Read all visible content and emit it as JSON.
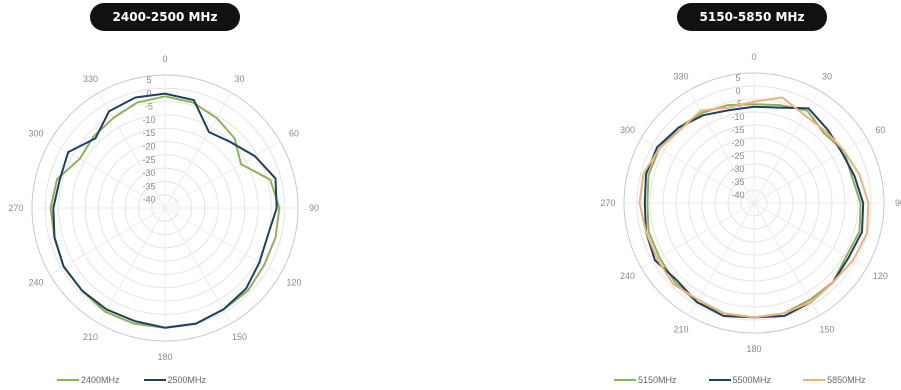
{
  "chart_data": [
    {
      "type": "polar-line",
      "title": "2400-2500 MHz",
      "angle_ticks": [
        "0",
        "30",
        "60",
        "90",
        "120",
        "150",
        "180",
        "210",
        "240",
        "270",
        "300",
        "330"
      ],
      "radial_ticks": [
        "5",
        "0",
        "-5",
        "-10",
        "-15",
        "-20",
        "-25",
        "-30",
        "-35",
        "-40"
      ],
      "rlim": [
        -45,
        5
      ],
      "angles": [
        0,
        15,
        30,
        45,
        60,
        75,
        90,
        105,
        120,
        135,
        150,
        165,
        180,
        195,
        210,
        225,
        240,
        255,
        270,
        285,
        300,
        315,
        330,
        345
      ],
      "legend_position": "bottom",
      "series": [
        {
          "name": "2400MHz",
          "color": "#8db356",
          "values": [
            -3,
            -4,
            -6,
            -8,
            -12,
            -4,
            -2,
            -2,
            -2,
            -1,
            -1,
            0,
            0,
            0,
            0,
            -1,
            -1,
            -2,
            -2,
            -3,
            -8,
            -7,
            -6,
            -4
          ]
        },
        {
          "name": "2500MHz",
          "color": "#1f3f66",
          "values": [
            -2,
            -3,
            -12,
            -10,
            -6,
            -2,
            -3,
            -5,
            -4,
            -2,
            -1,
            0,
            0,
            -1,
            -1,
            -1,
            -1,
            -2,
            -3,
            -4,
            -3,
            -8,
            -3,
            -2
          ]
        }
      ]
    },
    {
      "type": "polar-line",
      "title": "5150-5850 MHz",
      "angle_ticks": [
        "0",
        "30",
        "60",
        "90",
        "120",
        "150",
        "180",
        "210",
        "240",
        "270",
        "300",
        "330"
      ],
      "radial_ticks": [
        "5",
        "0",
        "-5",
        "-10",
        "-15",
        "-20",
        "-25",
        "-30",
        "-35",
        "-40"
      ],
      "rlim": [
        -45,
        5
      ],
      "angles": [
        0,
        15,
        30,
        45,
        60,
        75,
        90,
        105,
        120,
        135,
        150,
        165,
        180,
        195,
        210,
        225,
        240,
        255,
        270,
        285,
        300,
        315,
        330,
        345
      ],
      "legend_position": "bottom",
      "series": [
        {
          "name": "5150MHz",
          "color": "#8db356",
          "values": [
            -7,
            -6,
            -4,
            -7,
            -5,
            -6,
            -4,
            -3,
            -4,
            -2,
            -2,
            -1,
            -1,
            -1,
            -1,
            -2,
            -3,
            -3,
            -4,
            -3,
            -3,
            -4,
            -5,
            -6
          ]
        },
        {
          "name": "5500MHz",
          "color": "#1f3f66",
          "values": [
            -8,
            -7,
            -3,
            -5,
            -6,
            -5,
            -3,
            -2,
            -3,
            -2,
            -1,
            0,
            -1,
            0,
            -1,
            -3,
            -1,
            -2,
            -3,
            -2,
            -2,
            -4,
            -6,
            -8
          ]
        },
        {
          "name": "5850MHz",
          "color": "#f0b07a",
          "values": [
            -6,
            -3,
            -6,
            -6,
            -5,
            -3,
            -1,
            0,
            -1,
            -2,
            -1,
            -1,
            -1,
            -1,
            -2,
            -1,
            -2,
            -2,
            -1,
            -1,
            -3,
            -5,
            -4,
            -7
          ]
        }
      ]
    }
  ]
}
